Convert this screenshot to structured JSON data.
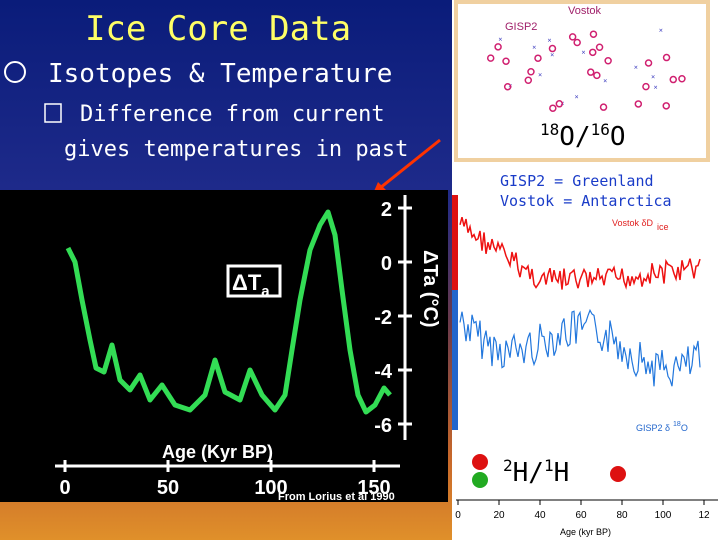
{
  "title": "Ice Core Data",
  "bullet": "Isotopes & Temperature",
  "sub_bullet": [
    "Difference from current",
    "gives temperatures in past"
  ],
  "left_chart": {
    "delta_label": {
      "main": "ΔT",
      "sub": "a"
    },
    "y_axis_label": "ΔTa (°C)",
    "y_ticks": [
      "2",
      "0",
      "-2",
      "-4",
      "-6"
    ],
    "x_axis_label": "Age (Kyr BP)",
    "x_ticks": [
      "0",
      "50",
      "100",
      "150"
    ],
    "credit": "From Lorius et al 1990"
  },
  "top_right": {
    "gisp2": "GISP2",
    "vostok": "Vostok",
    "ratio": {
      "mass1": "18",
      "el1": "O",
      "sep": "/",
      "mass2": "16",
      "el2": "O"
    }
  },
  "legend": [
    "GISP2 = Greenland",
    "Vostok = Antarctica"
  ],
  "right_chart": {
    "vostok_label": "Vostok δD",
    "vostok_sub": "ice",
    "gisp2_label": "GISP2 δ",
    "gisp2_sup": "18",
    "gisp2_el": "O",
    "ratio": {
      "mass1": "2",
      "el1": "H",
      "sep": "/",
      "mass2": "1",
      "el2": "H"
    },
    "x_ticks": [
      "0",
      "20",
      "40",
      "60",
      "80",
      "100",
      "12"
    ],
    "x_axis_label": "Age (kyr BP)"
  }
}
